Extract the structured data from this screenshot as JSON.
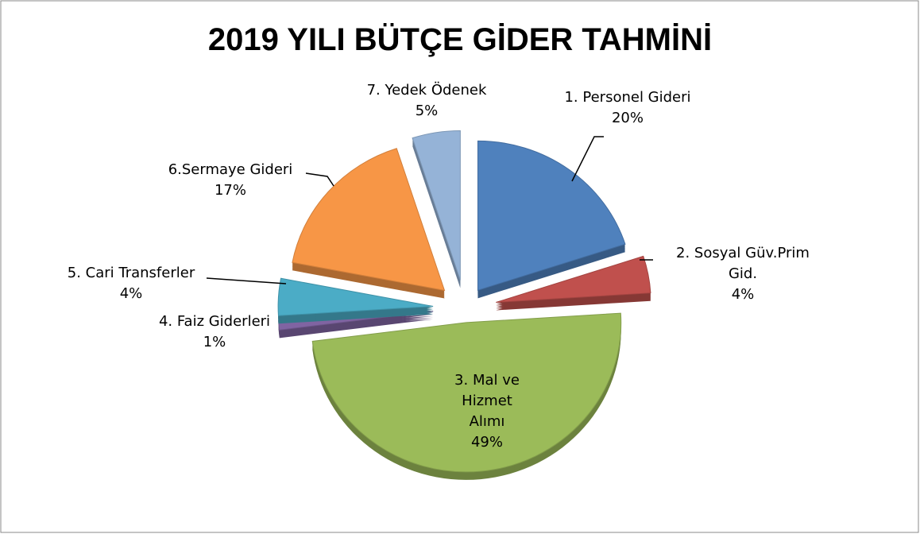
{
  "chart_data": {
    "type": "pie",
    "title": "2019 YILI BÜTÇE GİDER TAHMİNİ",
    "categories": [
      "1. Personel Gideri",
      "2. Sosyal Güv.Prim Gid.",
      "3. Mal ve Hizmet Alımı",
      "4. Faiz Giderleri",
      "5. Cari Transferler",
      "6.Sermaye Gideri",
      "7. Yedek Ödenek"
    ],
    "values": [
      20,
      4,
      49,
      1,
      4,
      17,
      5
    ],
    "value_labels": [
      "20%",
      "4%",
      "49%",
      "1%",
      "4%",
      "17%",
      "5%"
    ],
    "colors": [
      "#4f81bd",
      "#c0504d",
      "#9bbb59",
      "#8064a2",
      "#4bacc6",
      "#f79646",
      "#95b3d7"
    ]
  }
}
